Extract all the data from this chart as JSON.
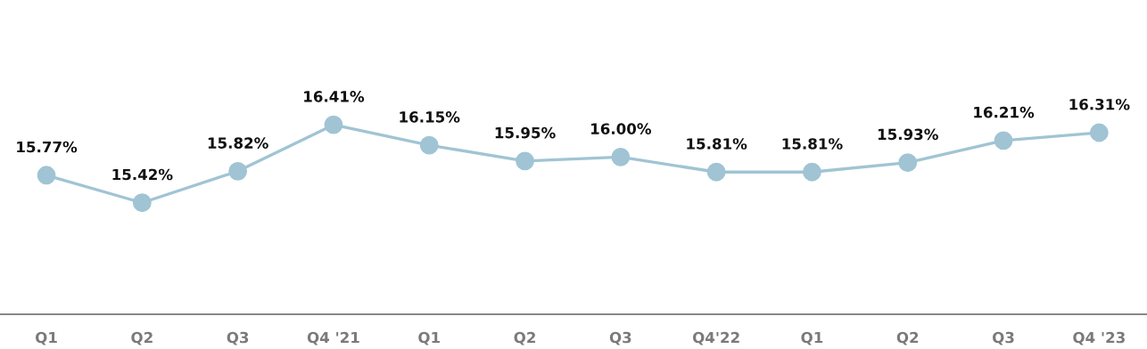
{
  "chart_data": {
    "type": "line",
    "categories": [
      "Q1",
      "Q2",
      "Q3",
      "Q4 '21",
      "Q1",
      "Q2",
      "Q3",
      "Q4'22",
      "Q1",
      "Q2",
      "Q3",
      "Q4 '23"
    ],
    "series": [
      {
        "color": "#a0c4d4",
        "values": [
          15.77,
          15.42,
          15.82,
          16.41,
          16.15,
          15.95,
          16.0,
          15.81,
          15.81,
          15.93,
          16.21,
          16.31
        ],
        "value_labels": [
          "15.77%",
          "15.42%",
          "15.82%",
          "16.41%",
          "16.15%",
          "15.95%",
          "16.00%",
          "15.81%",
          "15.81%",
          "15.93%",
          "16.21%",
          "16.31%"
        ]
      }
    ],
    "tick_labels": "x",
    "marker": "circle",
    "line_style": "solid"
  }
}
